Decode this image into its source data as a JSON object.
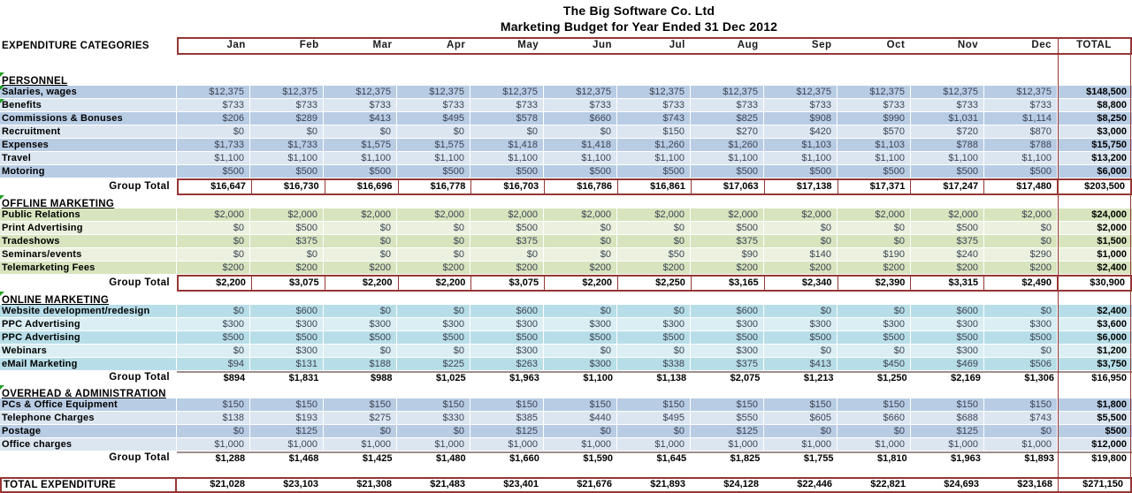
{
  "title": "The Big Software Co. Ltd",
  "subtitle": "Marketing Budget for Year Ended 31 Dec 2012",
  "header": {
    "categories_label": "EXPENDITURE CATEGORIES",
    "months": [
      "Jan",
      "Feb",
      "Mar",
      "Apr",
      "May",
      "Jun",
      "Jul",
      "Aug",
      "Sep",
      "Oct",
      "Nov",
      "Dec"
    ],
    "total_label": "TOTAL"
  },
  "group_total_label": "Group Total",
  "colors": {
    "border_red": "#963634",
    "band_blue": "#B8CCE4",
    "band_blue_light": "#DCE6F1",
    "band_green": "#D7E4BD",
    "band_green_light": "#EBF1DE",
    "band_aqua": "#B7DEE8",
    "band_aqua_light": "#DAEEF3",
    "flag_green": "#21A121",
    "total_rule_gray": "#9E8E8E"
  },
  "sections": [
    {
      "name": "PERSONNEL",
      "theme": "blue",
      "boxed_total": true,
      "rows": [
        {
          "label": "Salaries, wages",
          "flag": true,
          "values": [
            "$12,375",
            "$12,375",
            "$12,375",
            "$12,375",
            "$12,375",
            "$12,375",
            "$12,375",
            "$12,375",
            "$12,375",
            "$12,375",
            "$12,375",
            "$12,375"
          ],
          "total": "$148,500"
        },
        {
          "label": "Benefits",
          "flag": true,
          "values": [
            "$733",
            "$733",
            "$733",
            "$733",
            "$733",
            "$733",
            "$733",
            "$733",
            "$733",
            "$733",
            "$733",
            "$733"
          ],
          "total": "$8,800"
        },
        {
          "label": "Commissions & Bonuses",
          "flag": false,
          "values": [
            "$206",
            "$289",
            "$413",
            "$495",
            "$578",
            "$660",
            "$743",
            "$825",
            "$908",
            "$990",
            "$1,031",
            "$1,114"
          ],
          "total": "$8,250"
        },
        {
          "label": "Recruitment",
          "flag": false,
          "values": [
            "$0",
            "$0",
            "$0",
            "$0",
            "$0",
            "$0",
            "$150",
            "$270",
            "$420",
            "$570",
            "$720",
            "$870"
          ],
          "total": "$3,000"
        },
        {
          "label": "Expenses",
          "flag": false,
          "values": [
            "$1,733",
            "$1,733",
            "$1,575",
            "$1,575",
            "$1,418",
            "$1,418",
            "$1,260",
            "$1,260",
            "$1,103",
            "$1,103",
            "$788",
            "$788"
          ],
          "total": "$15,750"
        },
        {
          "label": "Travel",
          "flag": false,
          "values": [
            "$1,100",
            "$1,100",
            "$1,100",
            "$1,100",
            "$1,100",
            "$1,100",
            "$1,100",
            "$1,100",
            "$1,100",
            "$1,100",
            "$1,100",
            "$1,100"
          ],
          "total": "$13,200"
        },
        {
          "label": "Motoring",
          "flag": false,
          "values": [
            "$500",
            "$500",
            "$500",
            "$500",
            "$500",
            "$500",
            "$500",
            "$500",
            "$500",
            "$500",
            "$500",
            "$500"
          ],
          "total": "$6,000"
        }
      ],
      "group_total": {
        "values": [
          "$16,647",
          "$16,730",
          "$16,696",
          "$16,778",
          "$16,703",
          "$16,786",
          "$16,861",
          "$17,063",
          "$17,138",
          "$17,371",
          "$17,247",
          "$17,480"
        ],
        "total": "$203,500"
      }
    },
    {
      "name": "OFFLINE MARKETING",
      "theme": "green",
      "boxed_total": true,
      "rows": [
        {
          "label": "Public Relations",
          "flag": false,
          "values": [
            "$2,000",
            "$2,000",
            "$2,000",
            "$2,000",
            "$2,000",
            "$2,000",
            "$2,000",
            "$2,000",
            "$2,000",
            "$2,000",
            "$2,000",
            "$2,000"
          ],
          "total": "$24,000"
        },
        {
          "label": "Print Advertising",
          "flag": false,
          "values": [
            "$0",
            "$500",
            "$0",
            "$0",
            "$500",
            "$0",
            "$0",
            "$500",
            "$0",
            "$0",
            "$500",
            "$0"
          ],
          "total": "$2,000"
        },
        {
          "label": "Tradeshows",
          "flag": false,
          "values": [
            "$0",
            "$375",
            "$0",
            "$0",
            "$375",
            "$0",
            "$0",
            "$375",
            "$0",
            "$0",
            "$375",
            "$0"
          ],
          "total": "$1,500"
        },
        {
          "label": "Seminars/events",
          "flag": false,
          "values": [
            "$0",
            "$0",
            "$0",
            "$0",
            "$0",
            "$0",
            "$50",
            "$90",
            "$140",
            "$190",
            "$240",
            "$290"
          ],
          "total": "$1,000"
        },
        {
          "label": "Telemarketing Fees",
          "flag": false,
          "values": [
            "$200",
            "$200",
            "$200",
            "$200",
            "$200",
            "$200",
            "$200",
            "$200",
            "$200",
            "$200",
            "$200",
            "$200"
          ],
          "total": "$2,400"
        }
      ],
      "group_total": {
        "values": [
          "$2,200",
          "$3,075",
          "$2,200",
          "$2,200",
          "$3,075",
          "$2,200",
          "$2,250",
          "$3,165",
          "$2,340",
          "$2,390",
          "$3,315",
          "$2,490"
        ],
        "total": "$30,900"
      }
    },
    {
      "name": "ONLINE MARKETING",
      "theme": "aqua",
      "boxed_total": false,
      "rows": [
        {
          "label": "Website development/redesign",
          "flag": false,
          "values": [
            "$0",
            "$600",
            "$0",
            "$0",
            "$600",
            "$0",
            "$0",
            "$600",
            "$0",
            "$0",
            "$600",
            "$0"
          ],
          "total": "$2,400"
        },
        {
          "label": "PPC Advertising",
          "flag": false,
          "values": [
            "$300",
            "$300",
            "$300",
            "$300",
            "$300",
            "$300",
            "$300",
            "$300",
            "$300",
            "$300",
            "$300",
            "$300"
          ],
          "total": "$3,600"
        },
        {
          "label": "PPC Advertising",
          "flag": false,
          "values": [
            "$500",
            "$500",
            "$500",
            "$500",
            "$500",
            "$500",
            "$500",
            "$500",
            "$500",
            "$500",
            "$500",
            "$500"
          ],
          "total": "$6,000"
        },
        {
          "label": "Webinars",
          "flag": false,
          "values": [
            "$0",
            "$300",
            "$0",
            "$0",
            "$300",
            "$0",
            "$0",
            "$300",
            "$0",
            "$0",
            "$300",
            "$0"
          ],
          "total": "$1,200"
        },
        {
          "label": "eMail Marketing",
          "flag": false,
          "values": [
            "$94",
            "$131",
            "$188",
            "$225",
            "$263",
            "$300",
            "$338",
            "$375",
            "$413",
            "$450",
            "$469",
            "$506"
          ],
          "total": "$3,750"
        }
      ],
      "group_total": {
        "values": [
          "$894",
          "$1,831",
          "$988",
          "$1,025",
          "$1,963",
          "$1,100",
          "$1,138",
          "$2,075",
          "$1,213",
          "$1,250",
          "$2,169",
          "$1,306"
        ],
        "total": "$16,950"
      }
    },
    {
      "name": "OVERHEAD & ADMINISTRATION",
      "theme": "blue",
      "boxed_total": false,
      "rows": [
        {
          "label": "PCs & Office Equipment",
          "flag": false,
          "values": [
            "$150",
            "$150",
            "$150",
            "$150",
            "$150",
            "$150",
            "$150",
            "$150",
            "$150",
            "$150",
            "$150",
            "$150"
          ],
          "total": "$1,800"
        },
        {
          "label": "Telephone Charges",
          "flag": false,
          "values": [
            "$138",
            "$193",
            "$275",
            "$330",
            "$385",
            "$440",
            "$495",
            "$550",
            "$605",
            "$660",
            "$688",
            "$743"
          ],
          "total": "$5,500"
        },
        {
          "label": "Postage",
          "flag": false,
          "values": [
            "$0",
            "$125",
            "$0",
            "$0",
            "$125",
            "$0",
            "$0",
            "$125",
            "$0",
            "$0",
            "$125",
            "$0"
          ],
          "total": "$500"
        },
        {
          "label": "Office charges",
          "flag": false,
          "values": [
            "$1,000",
            "$1,000",
            "$1,000",
            "$1,000",
            "$1,000",
            "$1,000",
            "$1,000",
            "$1,000",
            "$1,000",
            "$1,000",
            "$1,000",
            "$1,000"
          ],
          "total": "$12,000"
        }
      ],
      "group_total": {
        "values": [
          "$1,288",
          "$1,468",
          "$1,425",
          "$1,480",
          "$1,660",
          "$1,590",
          "$1,645",
          "$1,825",
          "$1,755",
          "$1,810",
          "$1,963",
          "$1,893"
        ],
        "total": "$19,800"
      }
    }
  ],
  "grand_total": {
    "label": "TOTAL EXPENDITURE",
    "values": [
      "$21,028",
      "$23,103",
      "$21,308",
      "$21,483",
      "$23,401",
      "$21,676",
      "$21,893",
      "$24,128",
      "$22,446",
      "$22,821",
      "$24,693",
      "$23,168"
    ],
    "total": "$271,150"
  }
}
